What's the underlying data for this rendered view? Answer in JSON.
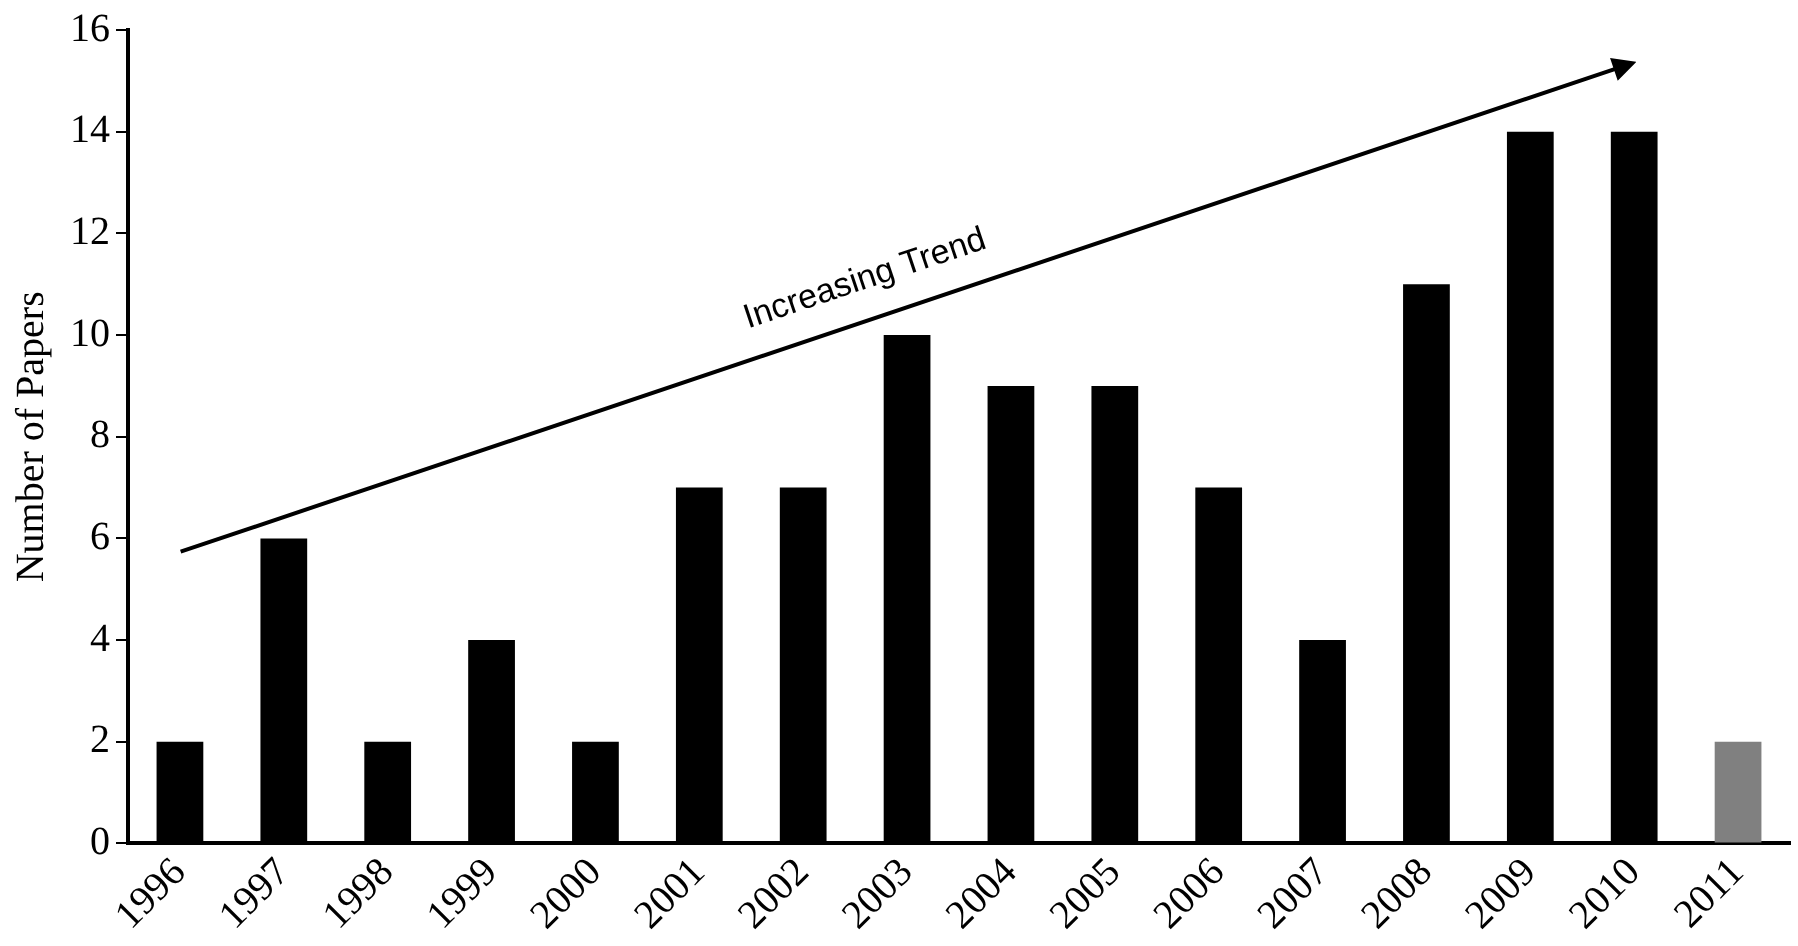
{
  "chart_data": {
    "type": "bar",
    "ylabel": "Number of Papers",
    "categories": [
      "1996",
      "1997",
      "1998",
      "1999",
      "2000",
      "2001",
      "2002",
      "2003",
      "2004",
      "2005",
      "2006",
      "2007",
      "2008",
      "2009",
      "2010",
      "2011"
    ],
    "values": [
      2,
      6,
      2,
      4,
      2,
      7,
      7,
      10,
      9,
      9,
      7,
      4,
      11,
      14,
      14,
      2
    ],
    "colors": [
      "#000000",
      "#000000",
      "#000000",
      "#000000",
      "#000000",
      "#000000",
      "#000000",
      "#000000",
      "#000000",
      "#000000",
      "#000000",
      "#000000",
      "#000000",
      "#000000",
      "#000000",
      "#808080"
    ],
    "ylim": [
      0,
      16
    ],
    "yticks": [
      0,
      2,
      4,
      6,
      8,
      10,
      12,
      14,
      16
    ],
    "grid": false,
    "legend": false,
    "annotations": [
      "Increasing Trend"
    ]
  }
}
